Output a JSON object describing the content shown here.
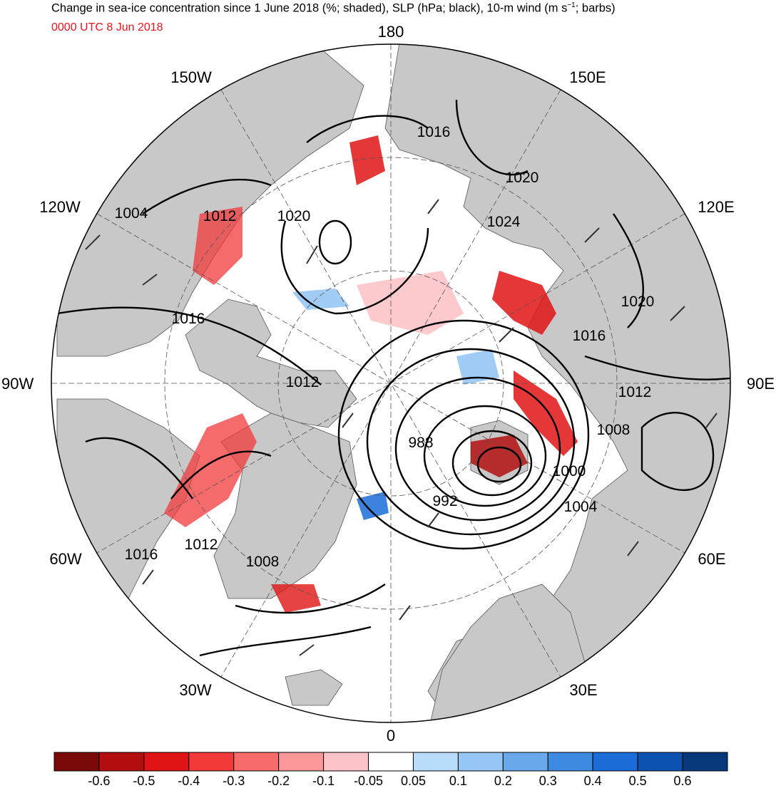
{
  "title": {
    "prefix": "Change in sea-ice concentration since 1 June 2018 (%; shaded), SLP (hPa; black), 10-m wind (m s",
    "exponent": "−1",
    "suffix": "; barbs)"
  },
  "subtitle": "0000 UTC 8 Jun 2018",
  "longitude_labels": {
    "top": "180",
    "bottom": "0",
    "left": "90W",
    "right": "90E",
    "upper_left": "150W",
    "upper_right": "150E",
    "mid_left_upper": "120W",
    "mid_right_upper": "120E",
    "mid_left_lower": "60W",
    "mid_right_lower": "60E",
    "lower_left": "30W",
    "lower_right": "30E"
  },
  "slp_contour_labels": [
    "1016",
    "1020",
    "1024",
    "1020",
    "1016",
    "1012",
    "1008",
    "1000",
    "1004",
    "992",
    "988",
    "1012",
    "1020",
    "1012",
    "1004",
    "1016",
    "1012",
    "1016",
    "1008"
  ],
  "colorbar": {
    "colors": [
      "#7a0a0a",
      "#b30f0f",
      "#e01414",
      "#f23a3a",
      "#f76b6b",
      "#fa9898",
      "#fcc3c8",
      "#ffffff",
      "#b8dcfa",
      "#96c6f5",
      "#6aa8ec",
      "#3d8ae2",
      "#1a6cd8",
      "#0d52b0",
      "#07397a"
    ],
    "tick_labels": [
      "-0.6",
      "-0.5",
      "-0.4",
      "-0.3",
      "-0.2",
      "-0.1",
      "-0.05",
      "0.05",
      "0.1",
      "0.2",
      "0.3",
      "0.4",
      "0.5",
      "0.6"
    ]
  },
  "colors": {
    "land": "#c8c8c8",
    "ocean": "#ffffff",
    "contour": "#000000",
    "subtitle": "#e8141e"
  }
}
